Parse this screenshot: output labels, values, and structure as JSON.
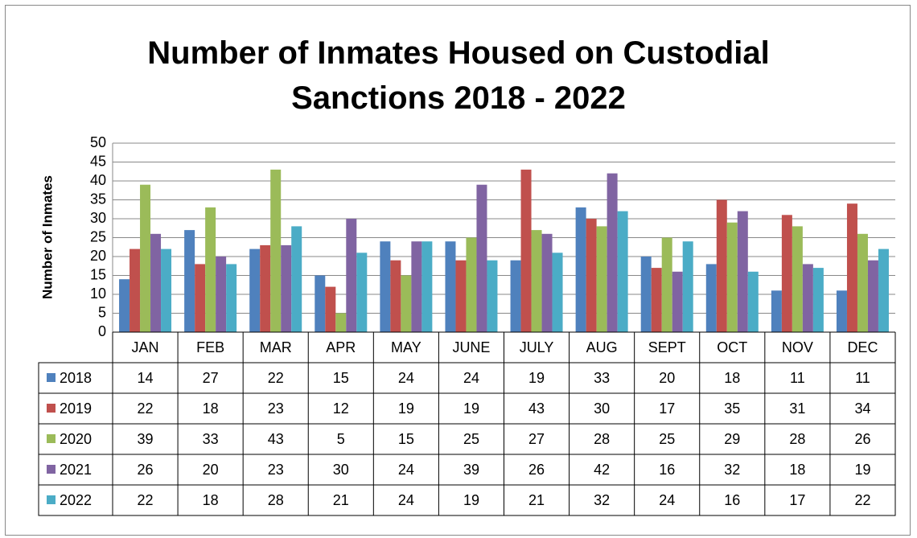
{
  "chart_data": {
    "type": "bar",
    "title": "Number of Inmates Housed on Custodial Sanctions 2018 - 2022",
    "y_label": "Number of Inmates",
    "categories": [
      "JAN",
      "FEB",
      "MAR",
      "APR",
      "MAY",
      "JUNE",
      "JULY",
      "AUG",
      "SEPT",
      "OCT",
      "NOV",
      "DEC"
    ],
    "series": [
      {
        "name": "2018",
        "color": "#4f81bd",
        "values": [
          14,
          27,
          22,
          15,
          24,
          24,
          19,
          33,
          20,
          18,
          11,
          11
        ]
      },
      {
        "name": "2019",
        "color": "#c0504d",
        "values": [
          22,
          18,
          23,
          12,
          19,
          19,
          43,
          30,
          17,
          35,
          31,
          34
        ]
      },
      {
        "name": "2020",
        "color": "#9bbb59",
        "values": [
          39,
          33,
          43,
          5,
          15,
          25,
          27,
          28,
          25,
          29,
          28,
          26
        ]
      },
      {
        "name": "2021",
        "color": "#8064a2",
        "values": [
          26,
          20,
          23,
          30,
          24,
          39,
          26,
          42,
          16,
          32,
          18,
          19
        ]
      },
      {
        "name": "2022",
        "color": "#4bacc6",
        "values": [
          22,
          18,
          28,
          21,
          24,
          19,
          21,
          32,
          24,
          16,
          17,
          22
        ]
      }
    ],
    "ylim": [
      0,
      50
    ],
    "yticks": [
      0,
      5,
      10,
      15,
      20,
      25,
      30,
      35,
      40,
      45,
      50
    ],
    "grid": true
  }
}
